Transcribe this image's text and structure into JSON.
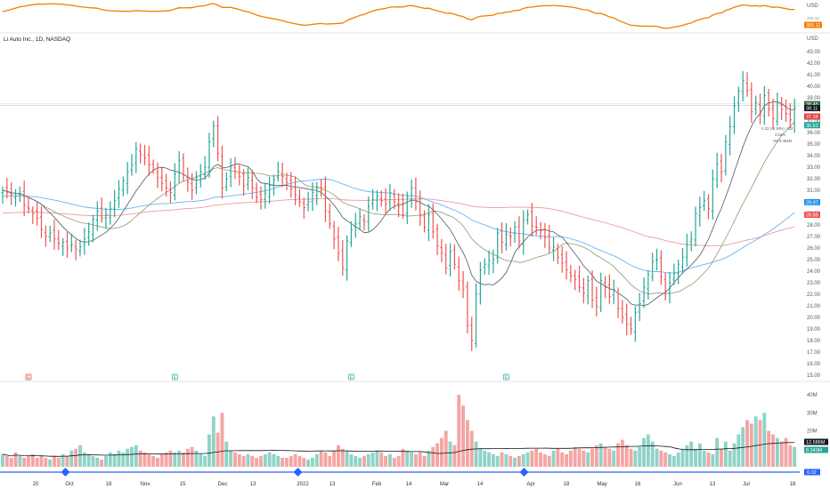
{
  "chart_data": {
    "type": "ohlc",
    "title": "Li Auto Inc., 1D, NASDAQ",
    "currency": "USD",
    "ylim": [
      15.0,
      43.5
    ],
    "y_ticks": [
      "43.00",
      "42.00",
      "41.00",
      "40.00",
      "39.00",
      "38.00",
      "37.00",
      "36.00",
      "35.00",
      "34.00",
      "33.00",
      "32.00",
      "31.00",
      "30.00",
      "29.00",
      "28.00",
      "27.00",
      "26.00",
      "25.00",
      "24.00",
      "23.00",
      "22.00",
      "21.00",
      "20.00",
      "19.00",
      "18.00",
      "17.00",
      "16.00",
      "15.00"
    ],
    "x_ticks": [
      "20",
      "Oct",
      "18",
      "Nov",
      "15",
      "Dec",
      "13",
      "2022",
      "13",
      "Feb",
      "14",
      "Mar",
      "14",
      "Apr",
      "18",
      "May",
      "16",
      "Jun",
      "13",
      "Jul",
      "18"
    ],
    "price_tags": [
      {
        "label": "38.45",
        "value": 38.45,
        "color": "#2f6f3f"
      },
      {
        "label": "38.11",
        "value": 38.11,
        "color": "#131722"
      },
      {
        "label": "37.38",
        "value": 37.38,
        "color": "#e04040"
      },
      {
        "label": "36.63",
        "value": 36.63,
        "color": "#26a69a"
      },
      {
        "label": "29.97",
        "value": 29.97,
        "color": "#2196f3"
      },
      {
        "label": "28.88",
        "value": 28.88,
        "color": "#ef5350"
      }
    ],
    "measure_note": [
      "-1.22 (-3.16%) -122",
      "3 bars,",
      "Vol 9.491M"
    ],
    "events": [
      {
        "label": "E",
        "color": "#e04040",
        "idx": 6
      },
      {
        "label": "E",
        "color": "#26a69a",
        "idx": 40
      },
      {
        "label": "E",
        "color": "#26a69a",
        "idx": 81
      },
      {
        "label": "E",
        "color": "#26a69a",
        "idx": 117
      }
    ],
    "closes": [
      31.0,
      30.8,
      30.6,
      30.5,
      30.7,
      29.7,
      29.4,
      29.0,
      28.6,
      27.6,
      27.0,
      27.3,
      26.8,
      26.4,
      26.5,
      26.0,
      26.3,
      25.9,
      26.1,
      26.8,
      27.4,
      28.5,
      29.2,
      28.6,
      28.9,
      29.4,
      30.1,
      31.1,
      31.8,
      32.6,
      33.2,
      34.6,
      34.1,
      33.8,
      33.2,
      32.8,
      32.1,
      31.6,
      31.2,
      30.8,
      32.4,
      33.6,
      32.3,
      31.7,
      31.0,
      32.1,
      32.6,
      33.0,
      35.2,
      36.6,
      34.2,
      31.2,
      32.0,
      33.1,
      32.6,
      32.2,
      31.4,
      32.1,
      31.2,
      30.4,
      30.2,
      30.7,
      31.4,
      31.9,
      32.6,
      32.2,
      31.7,
      31.1,
      30.6,
      30.0,
      29.5,
      30.0,
      30.8,
      31.2,
      31.0,
      29.2,
      28.1,
      26.8,
      25.6,
      24.3,
      26.6,
      27.6,
      28.1,
      28.7,
      28.3,
      29.6,
      30.2,
      30.5,
      30.1,
      29.8,
      30.8,
      30.0,
      29.6,
      28.9,
      30.4,
      31.2,
      30.0,
      28.8,
      27.8,
      28.9,
      27.4,
      26.2,
      25.6,
      24.3,
      25.7,
      24.6,
      23.2,
      22.4,
      19.3,
      18.0,
      22.0,
      24.1,
      24.6,
      24.9,
      25.0,
      27.3,
      26.5,
      27.2,
      27.0,
      27.8,
      26.6,
      28.4,
      28.9,
      27.9,
      27.8,
      27.5,
      26.9,
      26.0,
      26.1,
      25.2,
      24.7,
      24.1,
      23.6,
      23.3,
      22.6,
      22.1,
      23.2,
      21.5,
      21.0,
      23.2,
      22.6,
      21.8,
      22.4,
      20.8,
      20.0,
      19.4,
      19.0,
      20.4,
      21.2,
      22.6,
      23.7,
      24.8,
      25.0,
      23.5,
      22.2,
      23.0,
      23.8,
      24.6,
      25.2,
      26.3,
      26.8,
      29.0,
      29.5,
      30.1,
      29.4,
      32.0,
      33.3,
      32.6,
      35.2,
      36.5,
      38.3,
      39.6,
      40.5,
      39.6,
      37.8,
      38.6,
      37.6,
      39.2,
      38.0,
      37.2,
      38.5,
      38.0,
      37.6,
      37.1,
      38.1
    ]
  },
  "oscillator": {
    "unit": "USD",
    "tags": [
      "393.18",
      "385.11"
    ]
  },
  "volume": {
    "y_ticks": [
      "40M",
      "30M",
      "20M"
    ],
    "ylim_max_millions": 45,
    "tags": [
      {
        "label": "12.586M",
        "color": "#131722"
      },
      {
        "label": "8.349M",
        "color": "#26a69a"
      }
    ],
    "values_millions": [
      7,
      6,
      5,
      8,
      6,
      5,
      6,
      7,
      5,
      6,
      5,
      4,
      6,
      5,
      7,
      6,
      9,
      10,
      12,
      8,
      7,
      6,
      5,
      4,
      6,
      8,
      7,
      9,
      8,
      10,
      11,
      12,
      9,
      8,
      7,
      6,
      5,
      7,
      8,
      9,
      8,
      9,
      8,
      10,
      11,
      9,
      7,
      6,
      18,
      28,
      19,
      30,
      14,
      9,
      8,
      7,
      6,
      7,
      6,
      5,
      6,
      7,
      8,
      7,
      6,
      5,
      5,
      6,
      7,
      6,
      5,
      4,
      5,
      7,
      9,
      8,
      6,
      9,
      12,
      10,
      9,
      7,
      6,
      5,
      6,
      7,
      8,
      9,
      8,
      6,
      7,
      5,
      6,
      10,
      9,
      8,
      7,
      8,
      6,
      9,
      11,
      13,
      16,
      20,
      14,
      12,
      40,
      34,
      26,
      20,
      14,
      10,
      9,
      8,
      7,
      6,
      8,
      7,
      6,
      5,
      6,
      7,
      8,
      9,
      10,
      8,
      7,
      6,
      9,
      10,
      8,
      7,
      9,
      11,
      10,
      9,
      8,
      10,
      12,
      13,
      11,
      10,
      9,
      13,
      15,
      12,
      10,
      9,
      11,
      16,
      18,
      14,
      10,
      9,
      8,
      7,
      6,
      8,
      10,
      12,
      14,
      10,
      13,
      9,
      8,
      7,
      16,
      10,
      14,
      9,
      13,
      18,
      22,
      26,
      24,
      28,
      26,
      30,
      20,
      18,
      16,
      14,
      16,
      12,
      11,
      10,
      9,
      8
    ]
  },
  "scrollbar": {
    "value_tag": "0.02"
  }
}
